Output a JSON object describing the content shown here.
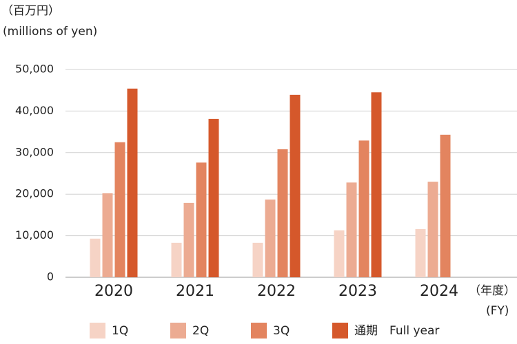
{
  "chart_data": {
    "type": "bar",
    "y_unit_label": "（百万円）",
    "y_unit_label_en": "(millions of yen)",
    "x_unit_label": "（年度）",
    "x_unit_label_en": "(FY)",
    "categories": [
      "2020",
      "2021",
      "2022",
      "2023",
      "2024"
    ],
    "series": [
      {
        "name": "1Q",
        "color": "#f6d3c5",
        "values": [
          9300,
          8300,
          8300,
          11300,
          11600
        ]
      },
      {
        "name": "2Q",
        "color": "#ecab92",
        "values": [
          20200,
          17900,
          18700,
          22800,
          23000
        ]
      },
      {
        "name": "3Q",
        "color": "#e3845f",
        "values": [
          32500,
          27600,
          30800,
          32900,
          34300
        ]
      },
      {
        "name": "通期　Full year",
        "color": "#d5582b",
        "values": [
          45400,
          38100,
          43900,
          44500,
          null
        ]
      }
    ],
    "ylim": [
      0,
      50000
    ],
    "yticks": [
      0,
      {
        "value": 10000,
        "label": "10,000"
      },
      {
        "value": 20000,
        "label": "20,000"
      },
      {
        "value": 30000,
        "label": "30,000"
      },
      {
        "value": 40000,
        "label": "40,000"
      },
      {
        "value": 50000,
        "label": "50,000"
      }
    ],
    "grid": true
  }
}
